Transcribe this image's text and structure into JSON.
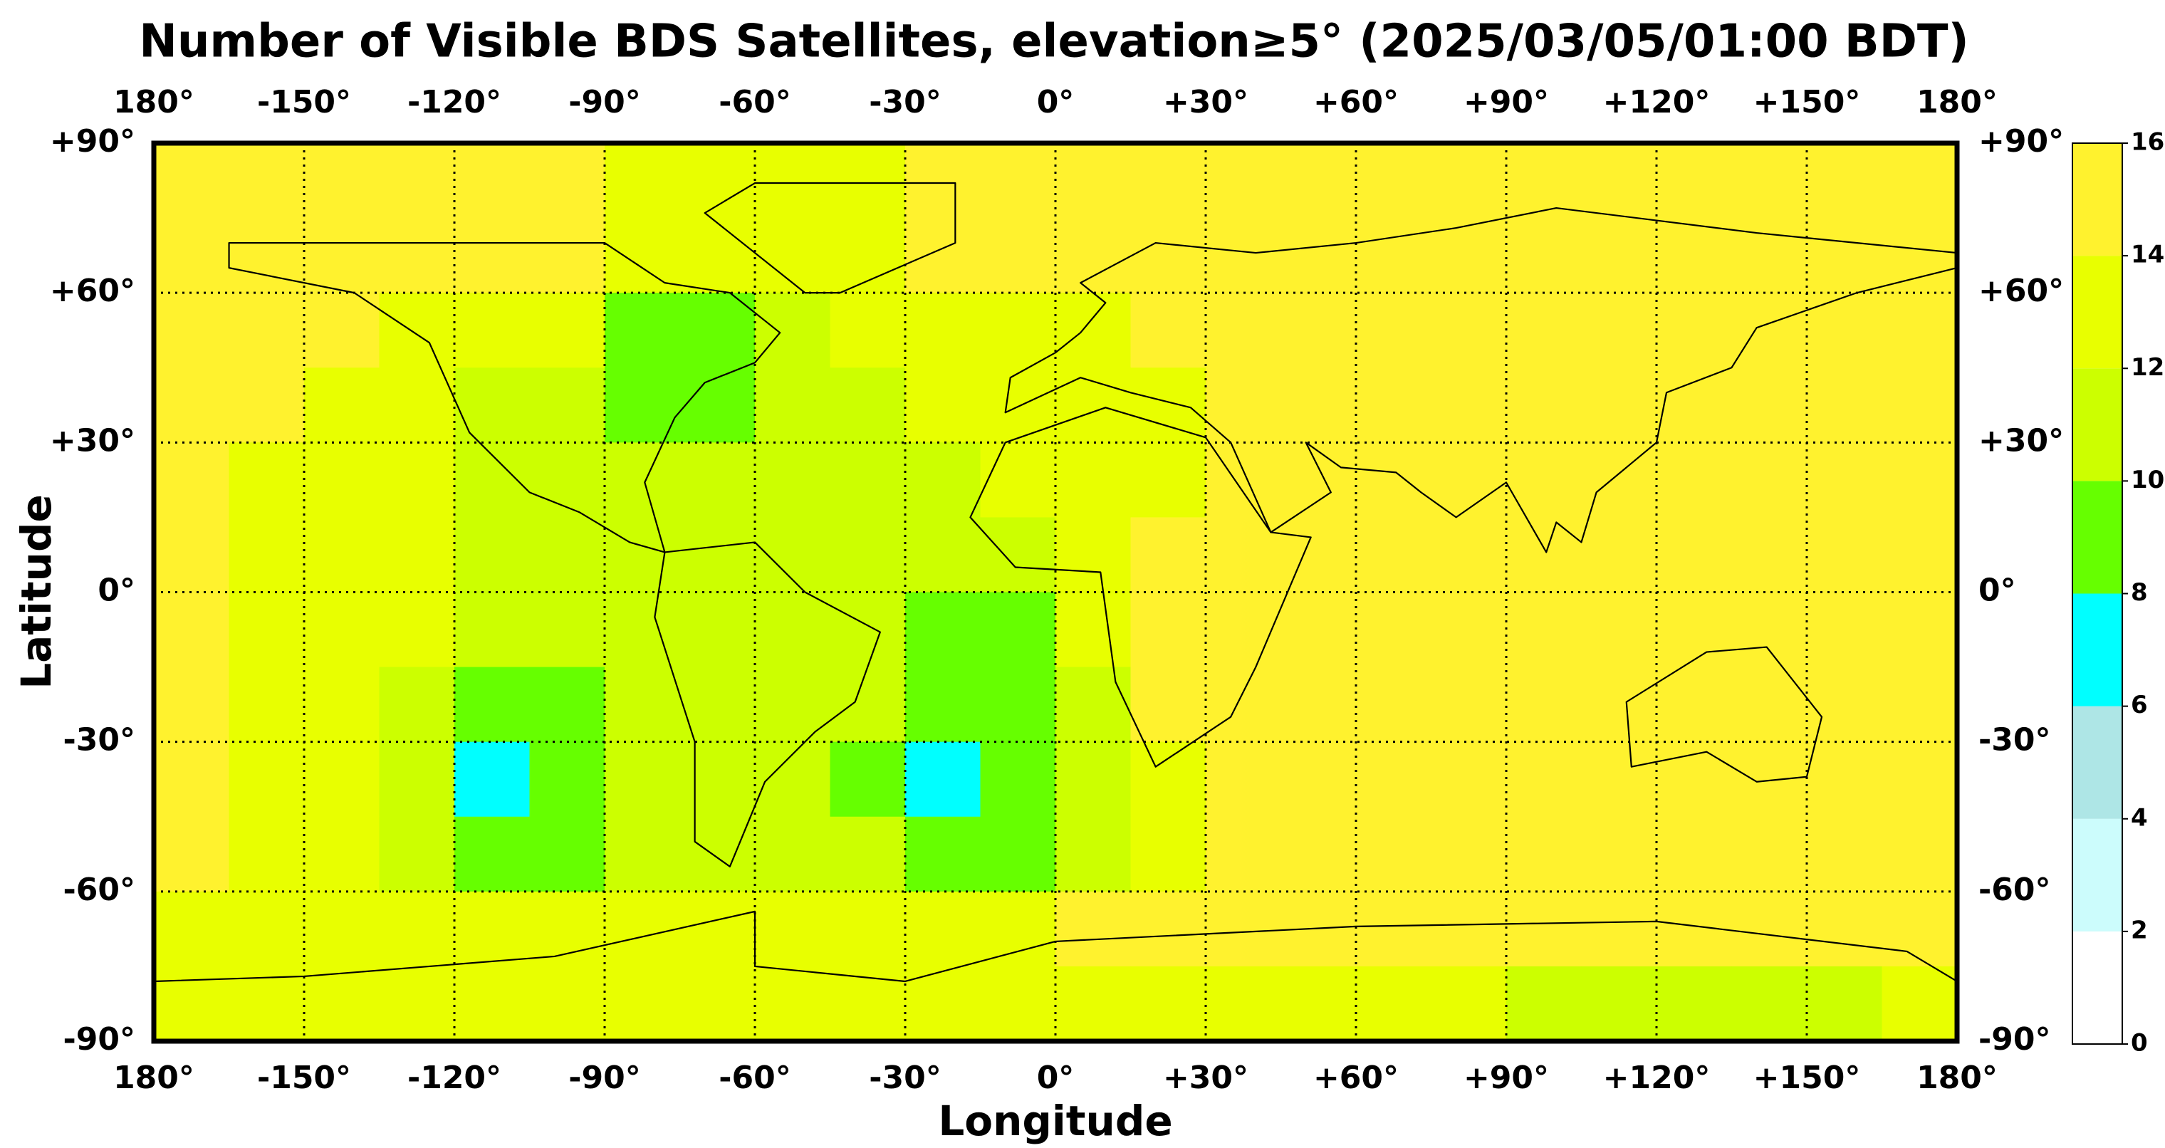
{
  "chart_data": {
    "type": "heatmap",
    "title": "Number of Visible BDS Satellites, elevation≥5° (2025/03/05/01:00 BDT)",
    "xlabel": "Longitude",
    "ylabel": "Latitude",
    "xlim": [
      -180,
      180
    ],
    "ylim": [
      -90,
      90
    ],
    "xticks": [
      {
        "value": -180,
        "label": "180°"
      },
      {
        "value": -150,
        "label": "-150°"
      },
      {
        "value": -120,
        "label": "-120°"
      },
      {
        "value": -90,
        "label": "-90°"
      },
      {
        "value": -60,
        "label": "-60°"
      },
      {
        "value": -30,
        "label": "-30°"
      },
      {
        "value": 0,
        "label": "0°"
      },
      {
        "value": 30,
        "label": "+30°"
      },
      {
        "value": 60,
        "label": "+60°"
      },
      {
        "value": 90,
        "label": "+90°"
      },
      {
        "value": 120,
        "label": "+120°"
      },
      {
        "value": 150,
        "label": "+150°"
      },
      {
        "value": 180,
        "label": "180°"
      }
    ],
    "yticks": [
      {
        "value": 90,
        "label": "+90°"
      },
      {
        "value": 60,
        "label": "+60°"
      },
      {
        "value": 30,
        "label": "+30°"
      },
      {
        "value": 0,
        "label": "0°"
      },
      {
        "value": -30,
        "label": "-30°"
      },
      {
        "value": -60,
        "label": "-60°"
      },
      {
        "value": -90,
        "label": "-90°"
      }
    ],
    "grid": true,
    "xbins": [
      -180,
      -165,
      -150,
      -135,
      -120,
      -105,
      -90,
      -75,
      -60,
      -45,
      -30,
      -15,
      0,
      15,
      30,
      45,
      60,
      75,
      90,
      105,
      120,
      135,
      150,
      165,
      180
    ],
    "ybins": [
      90,
      75,
      60,
      45,
      30,
      15,
      0,
      -15,
      -30,
      -45,
      -60,
      -75,
      -90
    ],
    "z": [
      [
        15,
        15,
        15,
        15,
        15,
        15,
        13,
        13,
        13,
        13,
        15,
        15,
        15,
        15,
        15,
        15,
        15,
        15,
        15,
        15,
        15,
        15,
        15,
        15
      ],
      [
        15,
        15,
        15,
        15,
        15,
        15,
        13,
        13,
        13,
        13,
        15,
        15,
        15,
        15,
        15,
        15,
        15,
        15,
        15,
        15,
        15,
        15,
        15,
        15
      ],
      [
        15,
        15,
        15,
        13,
        12,
        12,
        9,
        9,
        11,
        12,
        13,
        13,
        13,
        15,
        15,
        15,
        15,
        15,
        15,
        15,
        15,
        15,
        15,
        15
      ],
      [
        15,
        15,
        13,
        12,
        11,
        11,
        9,
        9,
        11,
        11,
        12,
        13,
        13,
        13,
        15,
        15,
        15,
        15,
        15,
        15,
        15,
        15,
        15,
        15
      ],
      [
        15,
        13,
        12,
        12,
        11,
        11,
        11,
        11,
        11,
        11,
        11,
        12,
        13,
        13,
        15,
        15,
        15,
        15,
        15,
        15,
        15,
        15,
        15,
        15
      ],
      [
        15,
        13,
        12,
        12,
        11,
        11,
        11,
        11,
        11,
        11,
        11,
        11,
        13,
        15,
        15,
        15,
        15,
        15,
        15,
        15,
        15,
        15,
        15,
        15
      ],
      [
        15,
        13,
        13,
        12,
        11,
        11,
        11,
        11,
        11,
        11,
        9,
        9,
        13,
        15,
        15,
        15,
        15,
        15,
        15,
        15,
        15,
        15,
        15,
        15
      ],
      [
        15,
        13,
        13,
        11,
        9,
        9,
        11,
        11,
        11,
        11,
        9,
        9,
        11,
        15,
        15,
        15,
        15,
        15,
        15,
        15,
        15,
        15,
        15,
        15
      ],
      [
        15,
        13,
        13,
        11,
        7,
        9,
        11,
        11,
        11,
        9,
        7,
        9,
        11,
        13,
        15,
        15,
        15,
        15,
        15,
        15,
        15,
        15,
        15,
        15
      ],
      [
        15,
        13,
        13,
        11,
        9,
        9,
        11,
        11,
        11,
        11,
        9,
        9,
        11,
        13,
        15,
        15,
        15,
        15,
        15,
        15,
        15,
        15,
        15,
        15
      ],
      [
        13,
        13,
        13,
        13,
        13,
        13,
        13,
        13,
        13,
        13,
        13,
        13,
        15,
        15,
        15,
        15,
        15,
        15,
        15,
        15,
        15,
        15,
        15,
        15
      ],
      [
        13,
        13,
        13,
        13,
        13,
        13,
        13,
        13,
        13,
        13,
        13,
        13,
        13,
        13,
        13,
        13,
        13,
        13,
        11,
        11,
        11,
        11,
        11,
        13
      ]
    ],
    "colorbar": {
      "lim": [
        0,
        16
      ],
      "ticks": [
        0,
        2,
        4,
        6,
        8,
        10,
        12,
        14,
        16
      ],
      "colors": [
        "#ffffff",
        "#ccfcfc",
        "#aee6e6",
        "#00ffff",
        "#66ff00",
        "#ccff00",
        "#e8ff00",
        "#fff22e"
      ]
    }
  }
}
